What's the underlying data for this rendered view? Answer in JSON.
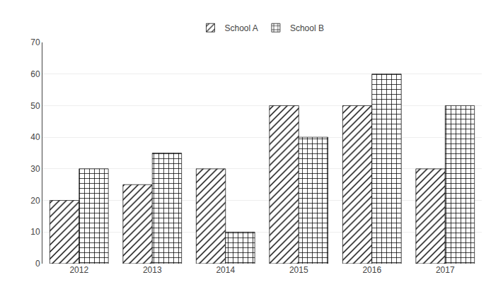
{
  "chart_data": {
    "type": "bar",
    "categories": [
      "2012",
      "2013",
      "2014",
      "2015",
      "2016",
      "2017"
    ],
    "series": [
      {
        "name": "School A",
        "color": "#ffffff",
        "values": [
          20,
          25,
          30,
          50,
          50,
          30
        ]
      },
      {
        "name": "School B",
        "color": "#ffffff",
        "values": [
          30,
          35,
          10,
          40,
          60,
          50
        ]
      }
    ],
    "ylim": [
      0,
      70
    ],
    "yticks": [
      0,
      10,
      20,
      30,
      40,
      50,
      60,
      70
    ],
    "grid": true,
    "legend": "top"
  }
}
